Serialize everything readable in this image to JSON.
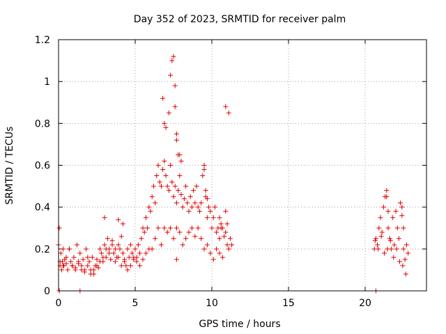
{
  "chart_data": {
    "type": "scatter",
    "title": "Day 352 of 2023, SRMTID for receiver palm",
    "xlabel": "GPS time / hours",
    "ylabel": "SRMTID / TECUs",
    "xlim": [
      0,
      24
    ],
    "ylim": [
      0,
      1.2
    ],
    "xticks": [
      0,
      5,
      10,
      15,
      20
    ],
    "xtick_labels": [
      "0",
      "5",
      "10",
      "15",
      "20"
    ],
    "yticks": [
      0,
      0.2,
      0.4,
      0.6,
      0.8,
      1.0,
      1.2
    ],
    "ytick_labels": [
      "0",
      "0.2",
      "0.4",
      "0.6",
      "0.8",
      "1",
      "1.2"
    ],
    "grid": true,
    "marker": "+",
    "color": "#e00000",
    "series": [
      {
        "name": "palm",
        "x": [
          0.0,
          0.05,
          0.1,
          0.15,
          0.2,
          0.25,
          0.3,
          0.35,
          0.4,
          0.5,
          0.6,
          0.7,
          0.8,
          0.9,
          1.0,
          1.1,
          1.2,
          1.3,
          1.4,
          1.5,
          1.6,
          1.7,
          1.8,
          1.9,
          2.0,
          2.1,
          2.2,
          2.3,
          2.4,
          2.5,
          2.6,
          2.7,
          2.8,
          2.9,
          3.0,
          3.1,
          3.2,
          3.3,
          3.4,
          3.5,
          3.6,
          3.7,
          3.8,
          3.9,
          4.0,
          4.1,
          4.2,
          4.3,
          4.4,
          4.5,
          4.6,
          4.7,
          4.8,
          4.9,
          5.0,
          5.1,
          5.2,
          5.3,
          5.4,
          5.5,
          5.6,
          5.7,
          5.8,
          5.9,
          6.0,
          6.1,
          6.2,
          6.3,
          6.4,
          6.5,
          6.6,
          6.7,
          6.8,
          6.9,
          7.0,
          7.1,
          7.2,
          7.3,
          7.4,
          7.5,
          7.6,
          7.7,
          7.8,
          7.9,
          8.0,
          8.1,
          8.2,
          8.3,
          8.4,
          8.5,
          8.6,
          8.7,
          8.8,
          8.9,
          9.0,
          9.1,
          9.2,
          9.3,
          9.4,
          9.5,
          9.6,
          9.7,
          9.8,
          9.9,
          10.0,
          10.1,
          10.2,
          10.3,
          10.4,
          10.5,
          10.6,
          10.7,
          10.8,
          10.9,
          11.0,
          11.1,
          11.2,
          11.3,
          0.1,
          0.3,
          0.5,
          0.7,
          0.9,
          1.1,
          1.3,
          1.5,
          1.7,
          1.9,
          2.1,
          2.3,
          2.5,
          2.7,
          2.9,
          3.1,
          3.3,
          3.5,
          3.7,
          3.9,
          4.1,
          4.3,
          4.5,
          4.7,
          4.9,
          5.1,
          5.3,
          5.5,
          5.7,
          5.9,
          6.1,
          6.3,
          6.5,
          6.7,
          6.9,
          7.1,
          7.3,
          7.5,
          7.7,
          7.9,
          8.1,
          8.3,
          8.5,
          8.7,
          8.9,
          9.1,
          9.3,
          9.5,
          9.7,
          9.9,
          10.1,
          10.3,
          10.5,
          10.7,
          10.9,
          11.1,
          6.8,
          6.9,
          7.0,
          7.2,
          7.3,
          7.4,
          7.5,
          7.6,
          7.6,
          7.7,
          7.7,
          7.8,
          7.9,
          8.0,
          9.5,
          9.6,
          9.7,
          10.5,
          10.6,
          10.9,
          11.0,
          4.2,
          3.9,
          3.0,
          1.4,
          0.05,
          7.7,
          20.6,
          20.7,
          20.8,
          20.9,
          21.0,
          21.1,
          21.2,
          21.3,
          21.4,
          21.5,
          21.6,
          21.7,
          21.8,
          21.9,
          22.0,
          22.1,
          22.2,
          22.3,
          22.4,
          22.5,
          22.6,
          22.7,
          22.8,
          20.65,
          20.85,
          21.05,
          21.25,
          21.45,
          21.65,
          21.85,
          22.05,
          22.25,
          22.45,
          22.65,
          21.4,
          21.5,
          22.4,
          22.5,
          20.7
        ],
        "y": [
          0.22,
          0.3,
          0.12,
          0.18,
          0.1,
          0.14,
          0.2,
          0.12,
          0.15,
          0.13,
          0.1,
          0.2,
          0.14,
          0.12,
          0.16,
          0.11,
          0.22,
          0.13,
          0.18,
          0.1,
          0.15,
          0.09,
          0.2,
          0.12,
          0.14,
          0.08,
          0.16,
          0.1,
          0.12,
          0.15,
          0.11,
          0.2,
          0.18,
          0.14,
          0.22,
          0.16,
          0.25,
          0.2,
          0.15,
          0.24,
          0.18,
          0.2,
          0.16,
          0.22,
          0.2,
          0.26,
          0.18,
          0.14,
          0.12,
          0.2,
          0.16,
          0.22,
          0.18,
          0.15,
          0.2,
          0.16,
          0.22,
          0.18,
          0.25,
          0.3,
          0.28,
          0.35,
          0.3,
          0.4,
          0.38,
          0.45,
          0.5,
          0.42,
          0.55,
          0.6,
          0.52,
          0.5,
          0.58,
          0.62,
          0.55,
          0.5,
          0.48,
          0.6,
          0.52,
          0.45,
          0.5,
          0.42,
          0.48,
          0.55,
          0.46,
          0.4,
          0.44,
          0.5,
          0.42,
          0.38,
          0.45,
          0.4,
          0.48,
          0.42,
          0.5,
          0.4,
          0.38,
          0.42,
          0.55,
          0.58,
          0.45,
          0.35,
          0.4,
          0.38,
          0.3,
          0.35,
          0.4,
          0.28,
          0.3,
          0.25,
          0.32,
          0.3,
          0.26,
          0.28,
          0.22,
          0.2,
          0.25,
          0.22,
          0.14,
          0.12,
          0.16,
          0.2,
          0.12,
          0.1,
          0.14,
          0.12,
          0.1,
          0.16,
          0.1,
          0.08,
          0.12,
          0.14,
          0.16,
          0.2,
          0.18,
          0.22,
          0.14,
          0.16,
          0.12,
          0.15,
          0.1,
          0.12,
          0.16,
          0.14,
          0.12,
          0.15,
          0.18,
          0.2,
          0.2,
          0.25,
          0.3,
          0.22,
          0.3,
          0.28,
          0.3,
          0.25,
          0.3,
          0.28,
          0.22,
          0.25,
          0.28,
          0.3,
          0.26,
          0.3,
          0.25,
          0.2,
          0.22,
          0.18,
          0.15,
          0.2,
          0.18,
          0.16,
          0.88,
          0.85,
          0.92,
          0.8,
          0.78,
          0.85,
          1.03,
          1.1,
          1.12,
          0.98,
          0.88,
          0.75,
          0.72,
          0.65,
          0.65,
          0.62,
          0.6,
          0.48,
          0.44,
          0.35,
          0.3,
          0.38,
          0.32,
          0.32,
          0.34,
          0.35,
          0.0,
          0.0,
          0.15,
          0.2,
          0.25,
          0.22,
          0.3,
          0.35,
          0.28,
          0.4,
          0.45,
          0.48,
          0.3,
          0.25,
          0.2,
          0.35,
          0.22,
          0.38,
          0.3,
          0.25,
          0.42,
          0.4,
          0.2,
          0.15,
          0.22,
          0.18,
          0.24,
          0.2,
          0.26,
          0.18,
          0.2,
          0.24,
          0.16,
          0.2,
          0.14,
          0.12,
          0.08,
          0.45,
          0.38,
          0.36,
          0.3,
          0.0
        ]
      }
    ]
  }
}
